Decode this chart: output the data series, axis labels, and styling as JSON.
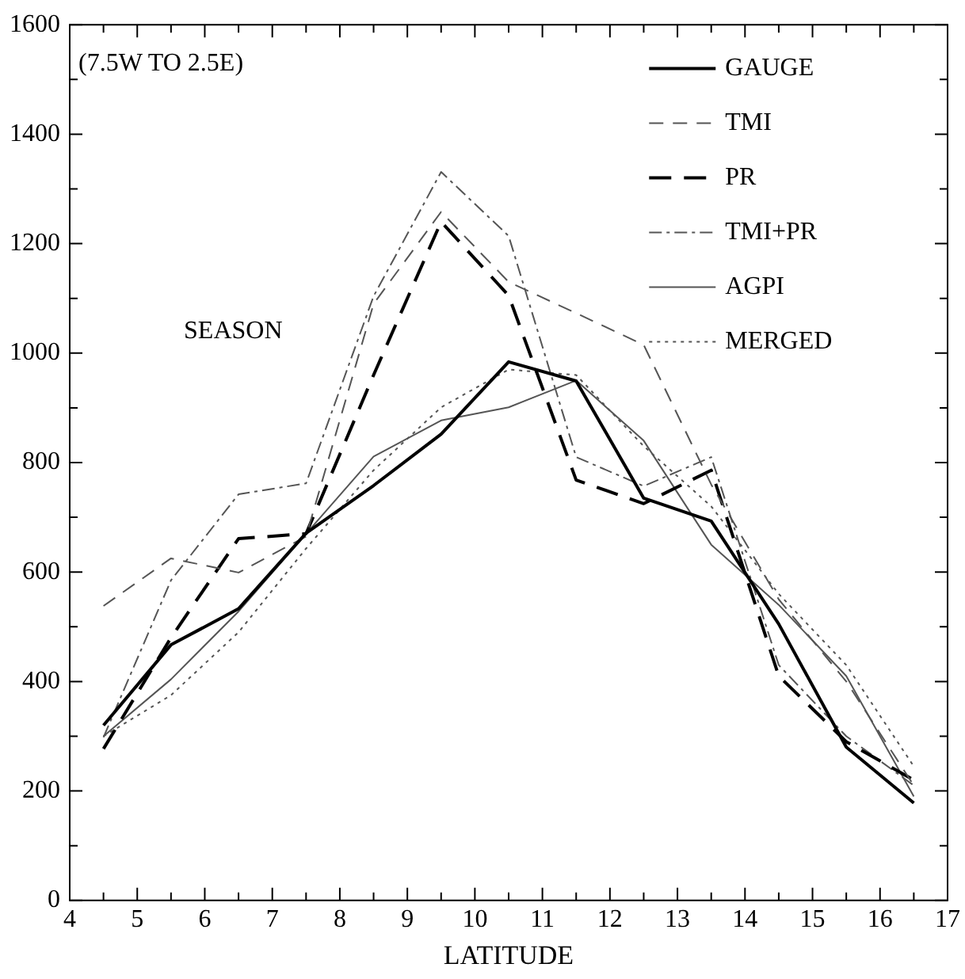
{
  "chart_data": {
    "type": "line",
    "xlabel": "LATITUDE",
    "annotations": [
      "(7.5W TO 2.5E)",
      "SEASON"
    ],
    "x": [
      4.5,
      5.5,
      6.5,
      7.5,
      8.5,
      9.5,
      10.5,
      11.5,
      12.5,
      13.5,
      14.5,
      15.5,
      16.5
    ],
    "xlim": [
      4,
      17
    ],
    "xticks": [
      4,
      5,
      6,
      7,
      8,
      9,
      10,
      11,
      12,
      13,
      14,
      15,
      16,
      17
    ],
    "ylim": [
      0,
      1600
    ],
    "yticks": [
      0,
      200,
      400,
      600,
      800,
      1000,
      1200,
      1400,
      1600
    ],
    "grid": false,
    "legend": "top right",
    "marker": "none",
    "series": [
      {
        "name": "GAUGE",
        "color": "#000000",
        "line_style": "solid",
        "values": [
          320,
          467,
          533,
          671,
          758,
          852,
          984,
          949,
          735,
          693,
          505,
          280,
          178
        ]
      },
      {
        "name": "TMI",
        "color": "#555555",
        "line_style": "dashed",
        "values": [
          538,
          625,
          599,
          665,
          1090,
          1258,
          1130,
          1073,
          1015,
          760,
          550,
          400,
          210
        ]
      },
      {
        "name": "PR",
        "color": "#000000",
        "line_style": "dashed",
        "values": [
          277,
          480,
          661,
          670,
          960,
          1240,
          1105,
          768,
          725,
          786,
          410,
          290,
          220
        ]
      },
      {
        "name": "TMI+PR",
        "color": "#555555",
        "line_style": "dashdot",
        "values": [
          298,
          585,
          742,
          762,
          1104,
          1331,
          1214,
          810,
          757,
          810,
          430,
          300,
          210
        ]
      },
      {
        "name": "AGPI",
        "color": "#555555",
        "line_style": "solid",
        "values": [
          300,
          404,
          528,
          670,
          811,
          877,
          901,
          950,
          840,
          650,
          540,
          410,
          190
        ]
      },
      {
        "name": "MERGED",
        "color": "#555555",
        "line_style": "dotted",
        "values": [
          300,
          375,
          490,
          643,
          786,
          901,
          970,
          960,
          830,
          720,
          560,
          430,
          245
        ]
      }
    ]
  }
}
